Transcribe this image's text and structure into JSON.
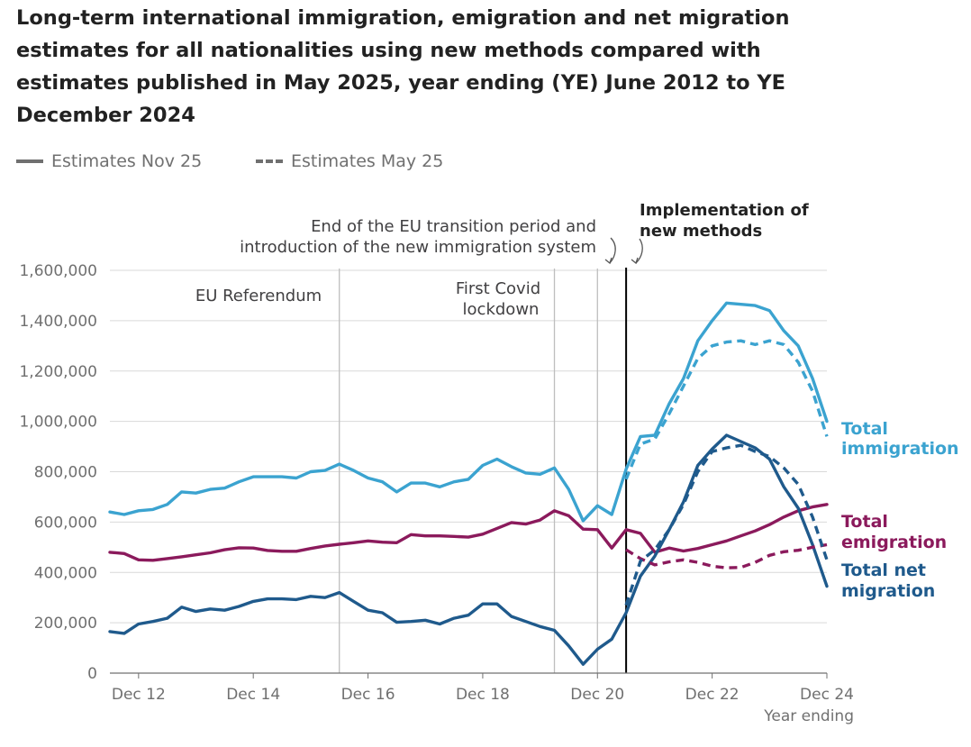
{
  "title": "Long-term international immigration, emigration and net migration estimates for all nationalities using new methods compared with estimates published in May 2025, year ending (YE) June 2012 to YE December 2024",
  "legend": {
    "solid_label": "Estimates Nov 25",
    "dashed_label": "Estimates May 25"
  },
  "annotations": {
    "eu_referendum": "EU Referendum",
    "covid_line1": "First Covid",
    "covid_line2": "lockdown",
    "eu_transition_line1": "End of the EU transition period and",
    "eu_transition_line2": "introduction of the new immigration system",
    "implementation_line1": "Implementation of",
    "implementation_line2": "new methods"
  },
  "colors": {
    "immigration": "#3BA3D0",
    "emigration": "#8B1A5C",
    "net": "#1F5A8C",
    "grid": "#D9D9D9",
    "axis": "#707070",
    "annotation_line": "#BEBEBE",
    "method_line": "#000000"
  },
  "chart_data": {
    "type": "line",
    "title": "Long-term international immigration, emigration and net migration estimates for all nationalities using new methods compared with estimates published in May 2025, year ending (YE) June 2012 to YE December 2024",
    "xlabel": "Year ending",
    "ylabel": "",
    "ylim": [
      0,
      1600000
    ],
    "yticks": [
      0,
      200000,
      400000,
      600000,
      800000,
      1000000,
      1200000,
      1400000,
      1600000
    ],
    "ytick_labels": [
      "0",
      "200,000",
      "400,000",
      "600,000",
      "800,000",
      "1,000,000",
      "1,200,000",
      "1,400,000",
      "1,600,000"
    ],
    "x_start": 2012.5,
    "x_end": 2025.0,
    "xticks": [
      2013.0,
      2015.0,
      2017.0,
      2019.0,
      2021.0,
      2023.0,
      2025.0
    ],
    "xtick_labels": [
      "Dec 12",
      "Dec 14",
      "Dec 16",
      "Dec 18",
      "Dec 20",
      "Dec 22",
      "Dec 24"
    ],
    "grid": true,
    "vertical_markers": [
      {
        "x": 2016.5,
        "label_key": "eu_referendum"
      },
      {
        "x": 2020.25,
        "label_key": "covid"
      },
      {
        "x": 2021.0,
        "label_key": "eu_transition"
      },
      {
        "x": 2021.5,
        "label_key": "implementation"
      }
    ],
    "series": [
      {
        "name": "Total immigration",
        "label_line1": "Total",
        "label_line2": "immigration",
        "estimate": "Estimates Nov 25",
        "style": "solid",
        "color_key": "immigration",
        "x_start": 2012.5,
        "step": 0.25,
        "values": [
          640000,
          630000,
          645000,
          650000,
          670000,
          720000,
          715000,
          730000,
          735000,
          760000,
          780000,
          780000,
          780000,
          775000,
          800000,
          805000,
          830000,
          805000,
          775000,
          760000,
          720000,
          755000,
          755000,
          740000,
          760000,
          770000,
          825000,
          850000,
          820000,
          795000,
          790000,
          815000,
          730000,
          605000,
          665000,
          630000,
          810000,
          940000,
          945000,
          1070000,
          1170000,
          1320000,
          1400000,
          1470000,
          1465000,
          1460000,
          1440000,
          1360000,
          1300000,
          1170000,
          1000000
        ]
      },
      {
        "name": "Total emigration",
        "label_line1": "Total",
        "label_line2": "emigration",
        "estimate": "Estimates Nov 25",
        "style": "solid",
        "color_key": "emigration",
        "x_start": 2012.5,
        "step": 0.25,
        "values": [
          480000,
          475000,
          450000,
          448000,
          455000,
          462000,
          470000,
          478000,
          490000,
          498000,
          497000,
          487000,
          484000,
          484000,
          495000,
          505000,
          512000,
          518000,
          525000,
          520000,
          518000,
          550000,
          545000,
          545000,
          543000,
          540000,
          552000,
          575000,
          598000,
          592000,
          608000,
          645000,
          625000,
          572000,
          570000,
          497000,
          570000,
          555000,
          480000,
          497000,
          485000,
          495000,
          510000,
          525000,
          545000,
          565000,
          590000,
          620000,
          645000,
          660000,
          670000
        ]
      },
      {
        "name": "Total net migration",
        "label_line1": "Total net",
        "label_line2": "migration",
        "estimate": "Estimates Nov 25",
        "style": "solid",
        "color_key": "net",
        "x_start": 2012.5,
        "step": 0.25,
        "values": [
          165000,
          158000,
          195000,
          205000,
          218000,
          262000,
          245000,
          255000,
          250000,
          265000,
          285000,
          295000,
          295000,
          292000,
          305000,
          300000,
          320000,
          285000,
          250000,
          240000,
          202000,
          205000,
          210000,
          195000,
          218000,
          230000,
          275000,
          275000,
          225000,
          205000,
          185000,
          170000,
          108000,
          35000,
          95000,
          135000,
          240000,
          385000,
          465000,
          570000,
          680000,
          825000,
          890000,
          945000,
          920000,
          895000,
          850000,
          740000,
          655000,
          510000,
          345000
        ]
      },
      {
        "name": "Total immigration",
        "estimate": "Estimates May 25",
        "style": "dashed",
        "color_key": "immigration",
        "x_start": 2021.5,
        "step": 0.25,
        "values": [
          770000,
          910000,
          930000,
          1030000,
          1140000,
          1250000,
          1300000,
          1315000,
          1320000,
          1305000,
          1320000,
          1305000,
          1235000,
          1120000,
          940000
        ]
      },
      {
        "name": "Total emigration",
        "estimate": "Estimates May 25",
        "style": "dashed",
        "color_key": "emigration",
        "x_start": 2021.5,
        "step": 0.25,
        "values": [
          490000,
          455000,
          430000,
          442000,
          450000,
          440000,
          425000,
          418000,
          420000,
          440000,
          468000,
          482000,
          488000,
          500000,
          510000
        ]
      },
      {
        "name": "Total net migration",
        "estimate": "Estimates May 25",
        "style": "dashed",
        "color_key": "net",
        "x_start": 2021.5,
        "step": 0.25,
        "values": [
          270000,
          445000,
          490000,
          570000,
          670000,
          800000,
          880000,
          895000,
          905000,
          880000,
          860000,
          815000,
          750000,
          620000,
          450000
        ]
      }
    ]
  }
}
